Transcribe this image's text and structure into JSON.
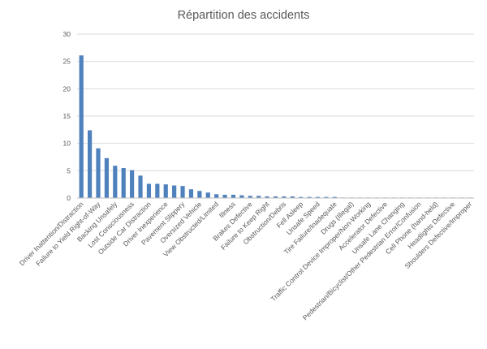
{
  "chart_data": {
    "type": "bar",
    "title": "Répartition des accidents",
    "xlabel": "",
    "ylabel": "",
    "ylim": [
      0,
      30
    ],
    "yticks": [
      0,
      5,
      10,
      15,
      20,
      25,
      30
    ],
    "grid": true,
    "legend": "none",
    "color": "#4f81bd",
    "categories": [
      "Driver Inattention/Distraction",
      "",
      "Failure to Yield Right-of-Way",
      "",
      "Backing Unsafely",
      "",
      "Lost Consciousness",
      "",
      "Outside Car Distraction",
      "",
      "Driver Inexperience",
      "",
      "Pavement Slippery",
      "",
      "Oversized Vehicle",
      "",
      "View Obstructed/Limited",
      "",
      "Illness",
      "",
      "Brakes Defective",
      "",
      "Failure to Keep Right",
      "",
      "Obstruction/Debris",
      "",
      "Fell Asleep",
      "",
      "Unsafe Speed",
      "",
      "Tire Failure/Inadequate",
      "",
      "Drugs (Illegal)",
      "",
      "Traffic Control Device Improper/Non-Working",
      "",
      "Accelerator Defective",
      "",
      "Unsafe Lane Changing",
      "",
      "Pedestrian/Bicyclist/Other Pedestrian Error/Confusion",
      "",
      "Cell Phone (hand-held)",
      "",
      "Headlights Defective",
      "",
      "Shoulders Defective/Improper"
    ],
    "values": [
      26.1,
      12.4,
      9.1,
      7.3,
      5.9,
      5.5,
      5.1,
      4.1,
      2.6,
      2.6,
      2.5,
      2.3,
      2.2,
      1.6,
      1.3,
      1.0,
      0.7,
      0.6,
      0.6,
      0.5,
      0.4,
      0.4,
      0.3,
      0.3,
      0.3,
      0.3,
      0.2,
      0.2,
      0.2,
      0.2,
      0.2,
      0.1,
      0.1,
      0.1,
      0.1,
      0.1,
      0.1,
      0.1,
      0.1,
      0.1,
      0.1,
      0.1,
      0.1,
      0.1,
      0.1,
      0.1,
      0.1
    ]
  }
}
